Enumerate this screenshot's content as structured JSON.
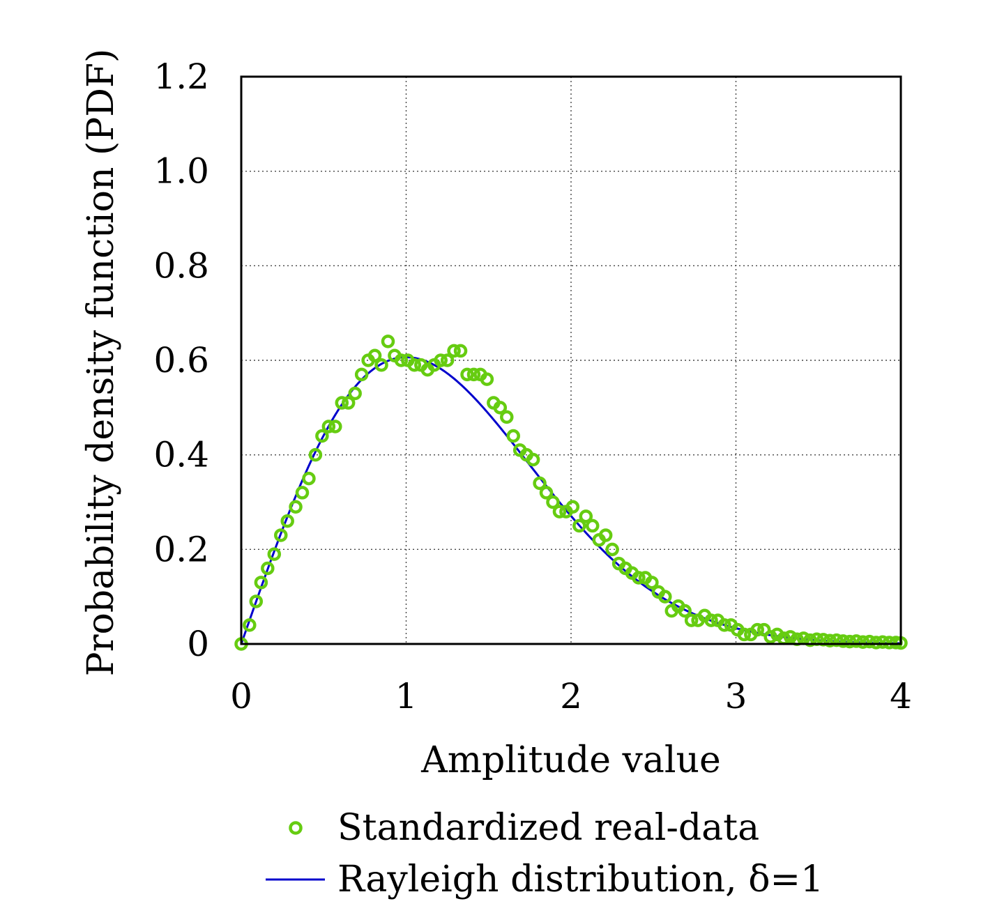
{
  "chart_data": {
    "type": "scatter",
    "xlabel": "Amplitude value",
    "ylabel": "Probability density function (PDF)",
    "xlim": [
      0,
      4
    ],
    "ylim": [
      0,
      1.2
    ],
    "xticks": [
      0,
      1,
      2,
      3,
      4
    ],
    "xtick_labels": [
      "0",
      "1",
      "2",
      "3",
      "4"
    ],
    "yticks": [
      0,
      0.2,
      0.4,
      0.6,
      0.8,
      1.0,
      1.2
    ],
    "ytick_labels": [
      "0",
      "0.2",
      "0.4",
      "0.6",
      "0.8",
      "1.0",
      "1.2"
    ],
    "grid": true,
    "legend_position": "bottom-center-below",
    "series": [
      {
        "name": "Standardized real-data",
        "kind": "scatter",
        "marker": "open-circle",
        "color": "#66cc11",
        "x": [
          0.0,
          0.05,
          0.09,
          0.12,
          0.16,
          0.2,
          0.24,
          0.28,
          0.33,
          0.37,
          0.41,
          0.45,
          0.49,
          0.53,
          0.57,
          0.61,
          0.65,
          0.69,
          0.73,
          0.77,
          0.81,
          0.85,
          0.89,
          0.93,
          0.97,
          1.01,
          1.05,
          1.09,
          1.13,
          1.17,
          1.21,
          1.25,
          1.29,
          1.33,
          1.37,
          1.41,
          1.45,
          1.49,
          1.53,
          1.57,
          1.61,
          1.65,
          1.69,
          1.73,
          1.77,
          1.81,
          1.85,
          1.89,
          1.93,
          1.97,
          2.01,
          2.05,
          2.09,
          2.13,
          2.17,
          2.21,
          2.25,
          2.29,
          2.33,
          2.37,
          2.41,
          2.45,
          2.49,
          2.53,
          2.57,
          2.61,
          2.65,
          2.69,
          2.73,
          2.77,
          2.81,
          2.85,
          2.89,
          2.93,
          2.97,
          3.01,
          3.05,
          3.09,
          3.13,
          3.17,
          3.21,
          3.25,
          3.29,
          3.33,
          3.37,
          3.41,
          3.45,
          3.49,
          3.53,
          3.57,
          3.61,
          3.65,
          3.69,
          3.73,
          3.77,
          3.81,
          3.85,
          3.89,
          3.93,
          3.97,
          4.0
        ],
        "y": [
          0.0,
          0.04,
          0.09,
          0.13,
          0.16,
          0.19,
          0.23,
          0.26,
          0.29,
          0.32,
          0.35,
          0.4,
          0.44,
          0.46,
          0.46,
          0.51,
          0.51,
          0.53,
          0.57,
          0.6,
          0.61,
          0.59,
          0.64,
          0.61,
          0.6,
          0.6,
          0.59,
          0.59,
          0.58,
          0.59,
          0.6,
          0.6,
          0.62,
          0.62,
          0.57,
          0.57,
          0.57,
          0.56,
          0.51,
          0.5,
          0.48,
          0.44,
          0.41,
          0.4,
          0.39,
          0.34,
          0.32,
          0.3,
          0.28,
          0.28,
          0.29,
          0.25,
          0.27,
          0.25,
          0.22,
          0.23,
          0.2,
          0.17,
          0.16,
          0.15,
          0.14,
          0.14,
          0.13,
          0.11,
          0.1,
          0.07,
          0.08,
          0.07,
          0.05,
          0.05,
          0.06,
          0.05,
          0.05,
          0.04,
          0.04,
          0.03,
          0.02,
          0.02,
          0.03,
          0.03,
          0.015,
          0.02,
          0.012,
          0.015,
          0.01,
          0.012,
          0.008,
          0.01,
          0.009,
          0.007,
          0.008,
          0.006,
          0.005,
          0.006,
          0.004,
          0.005,
          0.003,
          0.004,
          0.003,
          0.003,
          0.002
        ]
      },
      {
        "name": "Rayleigh distribution, δ=1",
        "kind": "line",
        "color": "#0000cc",
        "sigma": 1
      }
    ]
  }
}
